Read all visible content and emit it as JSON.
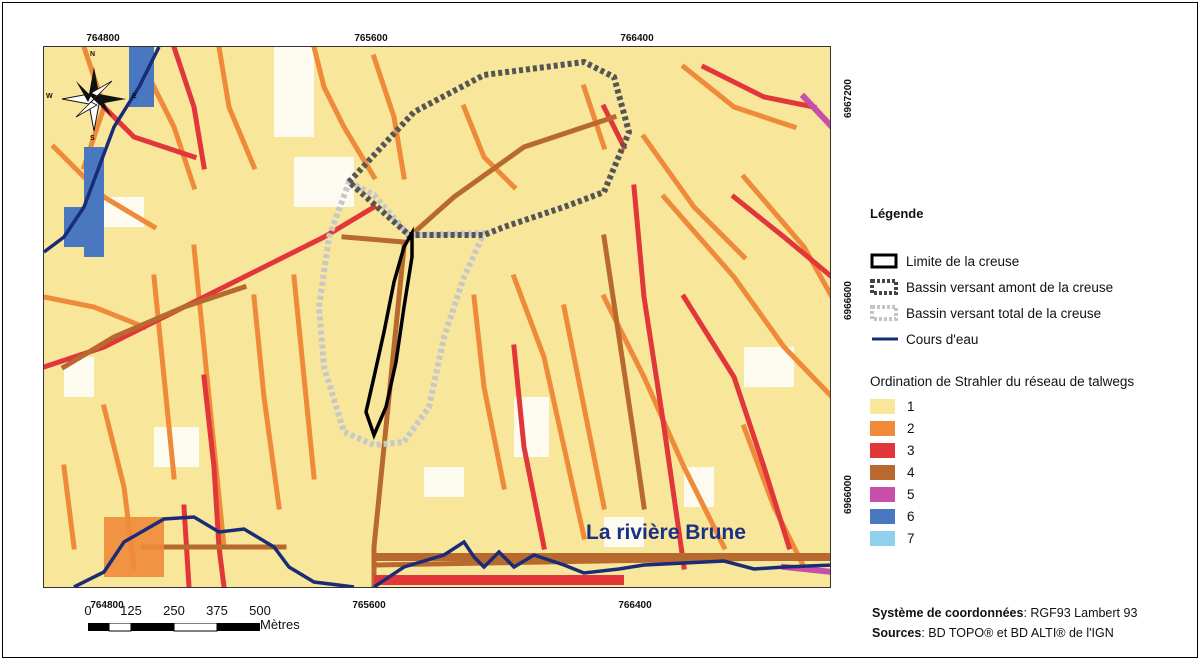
{
  "map": {
    "x_ticks_top": [
      "764800",
      "765600",
      "766400"
    ],
    "x_ticks_bottom": [
      "764800",
      "765600",
      "766400"
    ],
    "y_ticks": [
      "6967200",
      "6966600",
      "6966000"
    ],
    "river_label": "La rivière Brune",
    "compass": {
      "n": "N",
      "s": "S",
      "e": "E",
      "w": "W"
    },
    "colors": {
      "order_1": "#f8e69a",
      "order_2": "#ee8a3a",
      "order_3": "#e1363a",
      "order_4": "#b86a2e",
      "order_5": "#c74fa8",
      "order_6": "#4a78c0",
      "order_7": "#8fd0ea",
      "stream": "#1a2c78",
      "creuse_limit": "#000000",
      "basin_upstream": "#555555",
      "basin_total": "#bdbdbd"
    }
  },
  "legend": {
    "title": "Légende",
    "items": [
      {
        "icon": "creuse-limit-symbol",
        "label": "Limite de la creuse"
      },
      {
        "icon": "upstream-basin-symbol",
        "label": "Bassin versant amont de la creuse"
      },
      {
        "icon": "total-basin-symbol",
        "label": "Bassin versant total de la creuse"
      },
      {
        "icon": "stream-symbol",
        "label": "Cours d'eau"
      }
    ],
    "strahler_title": "Ordination de Strahler du réseau de talwegs",
    "strahler": [
      {
        "label": "1",
        "color": "#f8e69a"
      },
      {
        "label": "2",
        "color": "#ee8a3a"
      },
      {
        "label": "3",
        "color": "#e1363a"
      },
      {
        "label": "4",
        "color": "#b86a2e"
      },
      {
        "label": "5",
        "color": "#c74fa8"
      },
      {
        "label": "6",
        "color": "#4a78c0"
      },
      {
        "label": "7",
        "color": "#8fd0ea"
      }
    ]
  },
  "scale": {
    "labels": [
      "0",
      "125",
      "250",
      "375",
      "500"
    ],
    "unit": "Mètres"
  },
  "credits": {
    "coords_label": "Système de coordonnées",
    "coords_value": ": RGF93 Lambert 93",
    "sources_label": "Sources",
    "sources_value": ": BD TOPO® et BD ALTI® de l'IGN"
  }
}
